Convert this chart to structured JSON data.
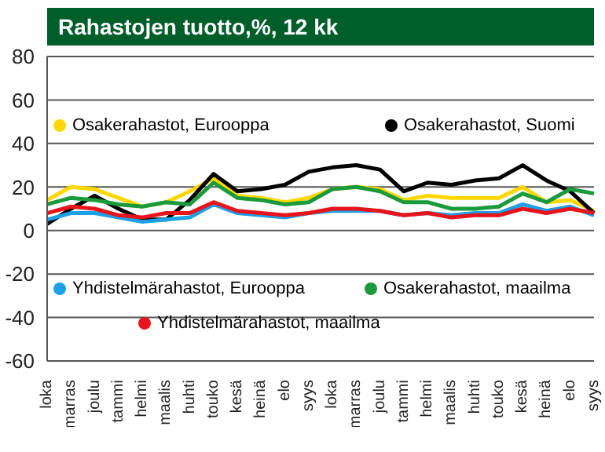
{
  "chart_data": {
    "type": "line",
    "title": "Rahastojen tuotto,%, 12 kk",
    "categories": [
      "loka",
      "marras",
      "joulu",
      "tammi",
      "helmi",
      "maalis",
      "huhti",
      "touko",
      "kesä",
      "heinä",
      "elo",
      "syys",
      "loka",
      "marras",
      "joulu",
      "tammi",
      "helmi",
      "maalis",
      "huhti",
      "touko",
      "kesä",
      "heinä",
      "elo",
      "syys"
    ],
    "series": [
      {
        "name": "Osakerahastot, Eurooppa",
        "color": "#ffd700",
        "values": [
          14,
          20,
          19,
          15,
          11,
          13,
          18,
          24,
          16,
          15,
          13,
          15,
          19,
          20,
          19,
          14,
          16,
          15,
          15,
          15,
          20,
          13,
          14,
          9
        ]
      },
      {
        "name": "Osakerahastot, Suomi",
        "color": "#000000",
        "values": [
          3,
          10,
          16,
          10,
          5,
          5,
          14,
          26,
          18,
          19,
          21,
          27,
          29,
          30,
          28,
          18,
          22,
          21,
          23,
          24,
          30,
          23,
          18,
          8
        ]
      },
      {
        "name": "Yhdistelmärahastot, Eurooppa",
        "color": "#1ca0e6",
        "values": [
          5,
          8,
          8,
          6,
          4,
          5,
          6,
          12,
          8,
          7,
          6,
          8,
          9,
          9,
          9,
          7,
          8,
          7,
          8,
          8,
          12,
          9,
          11,
          7
        ]
      },
      {
        "name": "Osakerahastot, maailma",
        "color": "#1a9a3a",
        "values": [
          12,
          15,
          14,
          12,
          11,
          13,
          12,
          22,
          15,
          14,
          12,
          13,
          19,
          20,
          18,
          13,
          13,
          10,
          10,
          11,
          17,
          13,
          19,
          17
        ]
      },
      {
        "name": "Yhdistelmärahastot, maailma",
        "color": "#e8141c",
        "values": [
          8,
          11,
          10,
          7,
          6,
          8,
          8,
          13,
          9,
          8,
          7,
          8,
          10,
          10,
          9,
          7,
          8,
          6,
          7,
          7,
          10,
          8,
          10,
          8
        ]
      }
    ],
    "ylim": [
      -60,
      80
    ],
    "yticks": [
      -60,
      -40,
      -20,
      0,
      20,
      40,
      60,
      80
    ],
    "grid": "y",
    "legend": "bottom left",
    "marker": "none",
    "line_style": "solid"
  }
}
